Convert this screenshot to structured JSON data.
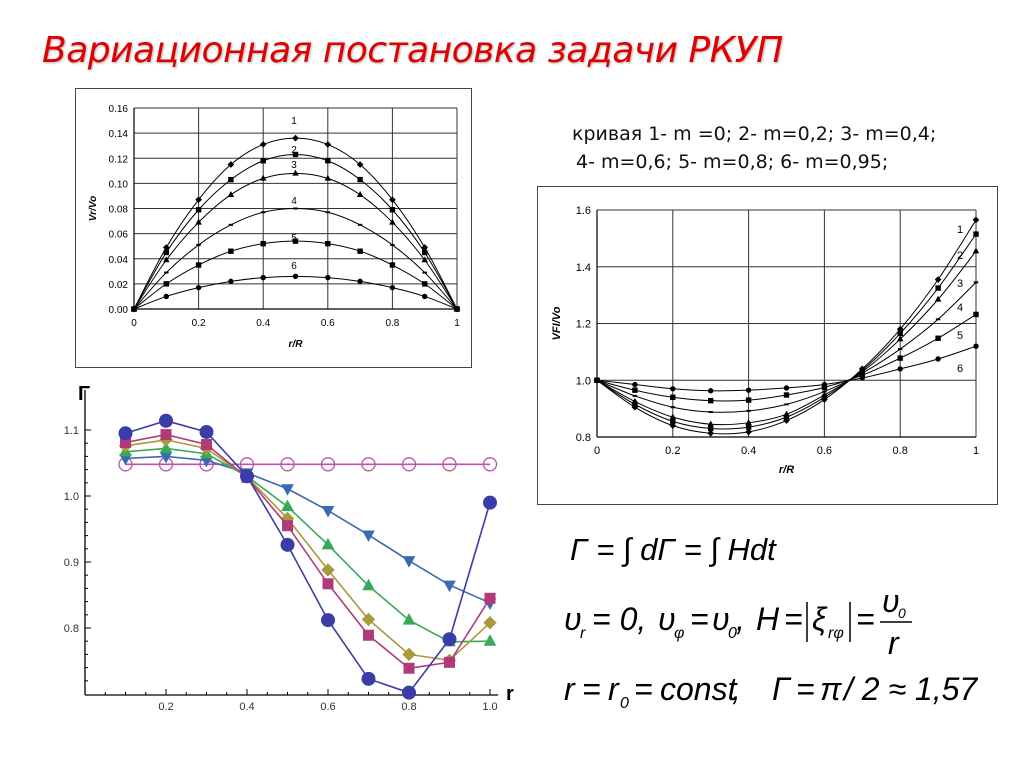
{
  "title": "Вариационная постановка задачи РКУП",
  "legend_text": {
    "line1": "кривая 1- m =0; 2- m=0,2; 3- m=0,4;",
    "line2": "4- m=0,6; 5- m=0,8; 6- m=0,95;"
  },
  "formulas": {
    "f1": "Γ = ∫dΓ = ∫Hdt",
    "f2": "υr = 0, υφ = υ0,  H = |ξrφ| = υ0 / r",
    "f3": "r = r0 = const,    Γ = π / 2 ≈ 1,57"
  },
  "chart_data": [
    {
      "id": "vr_chart",
      "type": "line",
      "title": "",
      "xlabel": "r/R",
      "ylabel": "Vr/Vo",
      "xlim": [
        0,
        1
      ],
      "ylim": [
        0,
        0.16
      ],
      "xticks": [
        "0",
        "0.2",
        "0.4",
        "0.6",
        "0.8",
        "1"
      ],
      "yticks": [
        "0.00",
        "0.02",
        "0.04",
        "0.06",
        "0.08",
        "0.10",
        "0.12",
        "0.14",
        "0.16"
      ],
      "grid": true,
      "x": [
        0,
        0.1,
        0.2,
        0.3,
        0.4,
        0.5,
        0.6,
        0.7,
        0.8,
        0.9,
        1.0
      ],
      "series": [
        {
          "name": "1",
          "marker": "diamond",
          "values": [
            0,
            0.049,
            0.087,
            0.115,
            0.131,
            0.136,
            0.131,
            0.115,
            0.087,
            0.049,
            0
          ]
        },
        {
          "name": "2",
          "marker": "square",
          "values": [
            0,
            0.045,
            0.079,
            0.103,
            0.118,
            0.123,
            0.118,
            0.103,
            0.079,
            0.045,
            0
          ]
        },
        {
          "name": "3",
          "marker": "triangle",
          "values": [
            0,
            0.039,
            0.069,
            0.091,
            0.104,
            0.108,
            0.104,
            0.091,
            0.069,
            0.039,
            0
          ]
        },
        {
          "name": "4",
          "marker": "dash",
          "values": [
            0,
            0.029,
            0.051,
            0.067,
            0.077,
            0.08,
            0.077,
            0.067,
            0.051,
            0.029,
            0
          ]
        },
        {
          "name": "5",
          "marker": "square",
          "values": [
            0,
            0.02,
            0.035,
            0.046,
            0.052,
            0.054,
            0.052,
            0.046,
            0.035,
            0.02,
            0
          ]
        },
        {
          "name": "6",
          "marker": "circle",
          "values": [
            0,
            0.01,
            0.017,
            0.022,
            0.025,
            0.026,
            0.025,
            0.022,
            0.017,
            0.01,
            0
          ]
        }
      ],
      "curve_labels": [
        "1",
        "2",
        "3",
        "4",
        "5",
        "6"
      ]
    },
    {
      "id": "vf_chart",
      "type": "line",
      "title": "",
      "xlabel": "r/R",
      "ylabel": "VFI/Vo",
      "xlim": [
        0,
        1
      ],
      "ylim": [
        0.8,
        1.6
      ],
      "xticks": [
        "0",
        "0.2",
        "0.4",
        "0.6",
        "0.8",
        "1"
      ],
      "yticks": [
        "0.8",
        "1.0",
        "1.2",
        "1.4",
        "1.6"
      ],
      "grid": true,
      "x": [
        0,
        0.1,
        0.2,
        0.3,
        0.4,
        0.5,
        0.6,
        0.7,
        0.8,
        0.9,
        1.0
      ],
      "series": [
        {
          "name": "1",
          "marker": "diamond",
          "values": [
            1.0,
            0.905,
            0.84,
            0.813,
            0.818,
            0.858,
            0.932,
            1.04,
            1.18,
            1.355,
            1.565
          ]
        },
        {
          "name": "2",
          "marker": "square",
          "values": [
            1.0,
            0.915,
            0.855,
            0.83,
            0.835,
            0.87,
            0.94,
            1.035,
            1.165,
            1.325,
            1.515
          ]
        },
        {
          "name": "3",
          "marker": "triangle",
          "values": [
            1.0,
            0.925,
            0.87,
            0.845,
            0.85,
            0.88,
            0.948,
            1.03,
            1.145,
            1.285,
            1.455
          ]
        },
        {
          "name": "4",
          "marker": "dash",
          "values": [
            1.0,
            0.945,
            0.905,
            0.888,
            0.892,
            0.915,
            0.96,
            1.025,
            1.11,
            1.215,
            1.345
          ]
        },
        {
          "name": "5",
          "marker": "square",
          "values": [
            1.0,
            0.965,
            0.94,
            0.928,
            0.93,
            0.948,
            0.975,
            1.018,
            1.078,
            1.148,
            1.232
          ]
        },
        {
          "name": "6",
          "marker": "circle",
          "values": [
            1.0,
            0.985,
            0.97,
            0.963,
            0.965,
            0.973,
            0.985,
            1.008,
            1.04,
            1.075,
            1.12
          ]
        }
      ],
      "curve_labels": [
        "1",
        "2",
        "3",
        "4",
        "5",
        "6"
      ]
    },
    {
      "id": "gamma_chart",
      "type": "line",
      "title": "",
      "xlabel": "r",
      "ylabel": "Γ",
      "xlim": [
        0,
        1.0
      ],
      "ylim": [
        0.7,
        1.12
      ],
      "xticks": [
        "0.2",
        "0.4",
        "0.6",
        "0.8",
        "1.0"
      ],
      "yticks": [
        "0.8",
        "0.9",
        "1.0",
        "1.1"
      ],
      "grid": false,
      "x": [
        0.1,
        0.2,
        0.3,
        0.4,
        0.5,
        0.6,
        0.7,
        0.8,
        0.9,
        1.0
      ],
      "series": [
        {
          "name": "circle-filled",
          "color": "#3a3ca8",
          "marker": "circle",
          "values": [
            1.095,
            1.114,
            1.097,
            1.03,
            0.926,
            0.812,
            0.723,
            0.702,
            0.783,
            0.99
          ]
        },
        {
          "name": "square",
          "color": "#b03a7a",
          "marker": "square",
          "values": [
            1.081,
            1.093,
            1.078,
            1.028,
            0.955,
            0.867,
            0.789,
            0.739,
            0.748,
            0.845
          ]
        },
        {
          "name": "diamond",
          "color": "#a89a3a",
          "marker": "diamond",
          "values": [
            1.076,
            1.085,
            1.072,
            1.029,
            0.966,
            0.888,
            0.813,
            0.76,
            0.751,
            0.808
          ]
        },
        {
          "name": "triangle-up",
          "color": "#3aa85a",
          "marker": "triangle-up",
          "values": [
            1.067,
            1.072,
            1.064,
            1.03,
            0.984,
            0.926,
            0.864,
            0.812,
            0.779,
            0.78
          ]
        },
        {
          "name": "triangle-down",
          "color": "#3a6ab0",
          "marker": "triangle-down",
          "values": [
            1.057,
            1.06,
            1.054,
            1.035,
            1.011,
            0.978,
            0.941,
            0.902,
            0.865,
            0.838
          ]
        },
        {
          "name": "circle-open",
          "color": "#c050b0",
          "marker": "circle-open",
          "values": [
            1.048,
            1.048,
            1.048,
            1.048,
            1.048,
            1.048,
            1.048,
            1.048,
            1.048,
            1.048
          ]
        }
      ]
    }
  ]
}
